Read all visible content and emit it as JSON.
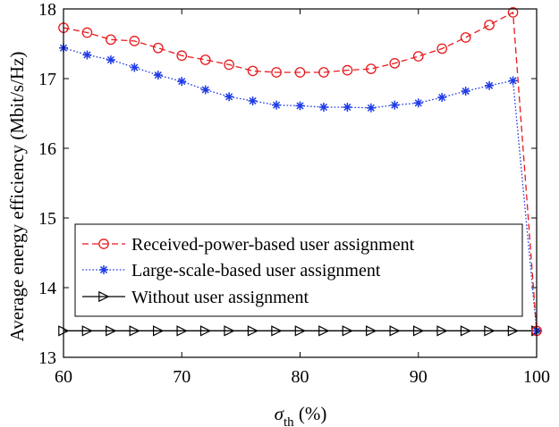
{
  "chart_data": {
    "type": "line",
    "xlabel": "σ",
    "xlabel_sub": "th",
    "xlabel_unit": " (%)",
    "ylabel": "Average energy efficiency (Mbit/s/Hz)",
    "xlim": [
      60,
      100
    ],
    "ylim": [
      13,
      18
    ],
    "xticks": [
      60,
      70,
      80,
      90,
      100
    ],
    "yticks": [
      13,
      14,
      15,
      16,
      17,
      18
    ],
    "grid": false,
    "legend_position": "lower-left",
    "x": [
      60,
      62,
      64,
      66,
      68,
      70,
      72,
      74,
      76,
      78,
      80,
      82,
      84,
      86,
      88,
      90,
      92,
      94,
      96,
      98,
      100
    ],
    "series": [
      {
        "name": "Received-power-based user assignment",
        "color": "#e8191d",
        "line_style": "dashed",
        "marker": "circle",
        "values": [
          17.73,
          17.66,
          17.56,
          17.54,
          17.44,
          17.33,
          17.27,
          17.2,
          17.11,
          17.09,
          17.09,
          17.09,
          17.12,
          17.14,
          17.22,
          17.32,
          17.43,
          17.59,
          17.77,
          17.95,
          13.38
        ]
      },
      {
        "name": "Large-scale-based user assignment",
        "color": "#1f3be6",
        "line_style": "dotted",
        "marker": "asterisk",
        "values": [
          17.44,
          17.34,
          17.27,
          17.16,
          17.05,
          16.96,
          16.84,
          16.74,
          16.68,
          16.62,
          16.61,
          16.59,
          16.59,
          16.58,
          16.62,
          16.65,
          16.73,
          16.82,
          16.9,
          16.97,
          13.38
        ]
      },
      {
        "name": "Without user assignment",
        "color": "#000000",
        "line_style": "solid",
        "marker": "triangle-right",
        "values": [
          13.38,
          13.38,
          13.38,
          13.38,
          13.38,
          13.38,
          13.38,
          13.38,
          13.38,
          13.38,
          13.38,
          13.38,
          13.38,
          13.38,
          13.38,
          13.38,
          13.38,
          13.38,
          13.38,
          13.38,
          13.38
        ]
      }
    ]
  }
}
